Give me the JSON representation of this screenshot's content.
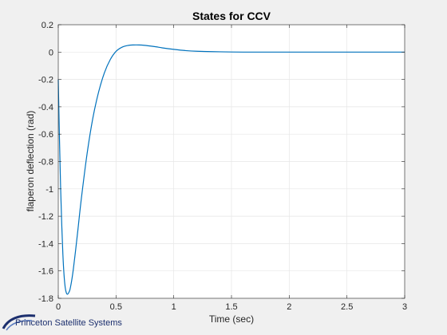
{
  "chart_data": {
    "type": "line",
    "title": "States for CCV",
    "xlabel": "Time (sec)",
    "ylabel": "flaperon deflection (rad)",
    "xlim": [
      0,
      3
    ],
    "ylim": [
      -1.8,
      0.2
    ],
    "xticks": [
      0,
      0.5,
      1,
      1.5,
      2,
      2.5,
      3
    ],
    "xtick_labels": [
      "0",
      "0.5",
      "1",
      "1.5",
      "2",
      "2.5",
      "3"
    ],
    "yticks": [
      0.2,
      0,
      -0.2,
      -0.4,
      -0.6,
      -0.8,
      -1,
      -1.2,
      -1.4,
      -1.6,
      -1.8
    ],
    "ytick_labels": [
      "0.2",
      "0",
      "-0.2",
      "-0.4",
      "-0.6",
      "-0.8",
      "-1",
      "-1.2",
      "-1.4",
      "-1.6",
      "-1.8"
    ],
    "grid": true,
    "line_color": "#0072bd",
    "series": [
      {
        "x": [
          0,
          0.01,
          0.02,
          0.03,
          0.04,
          0.05,
          0.06,
          0.07,
          0.08,
          0.09,
          0.1,
          0.11,
          0.12,
          0.13,
          0.14,
          0.15,
          0.17,
          0.2,
          0.25,
          0.3,
          0.35,
          0.4,
          0.45,
          0.5,
          0.55,
          0.6,
          0.65,
          0.7,
          0.75,
          0.8,
          0.85,
          0.9,
          1.0,
          1.1,
          1.2,
          1.4,
          1.6,
          1.8,
          2.0,
          2.5,
          3.0
        ],
        "y": [
          -0.2,
          -0.62,
          -0.98,
          -1.26,
          -1.48,
          -1.63,
          -1.72,
          -1.76,
          -1.77,
          -1.76,
          -1.74,
          -1.7,
          -1.65,
          -1.59,
          -1.52,
          -1.45,
          -1.3,
          -1.07,
          -0.74,
          -0.48,
          -0.29,
          -0.15,
          -0.055,
          0.005,
          0.035,
          0.048,
          0.052,
          0.052,
          0.049,
          0.044,
          0.038,
          0.031,
          0.02,
          0.011,
          0.006,
          0.002,
          0.0,
          0.0,
          0.0,
          0.0,
          0.0
        ]
      }
    ]
  },
  "logo": {
    "text": "Princeton Satellite Systems",
    "color": "#1c2f6e"
  }
}
